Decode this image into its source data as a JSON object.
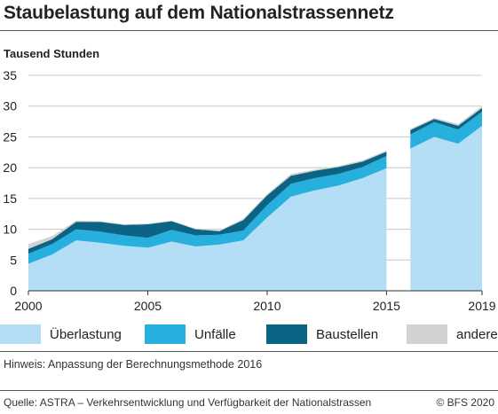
{
  "header": {
    "title": "Staubelastung auf dem Nationalstrassennetz"
  },
  "footer": {
    "note": "Hinweis: Anpassung der Berechnungsmethode 2016",
    "source": "Quelle: ASTRA – Verkehrsentwicklung und Verfügbarkeit der Nationalstrassen",
    "copyright": "© BFS 2020"
  },
  "colors": {
    "ueberlastung": "#b3def5",
    "unfaelle": "#27b0dd",
    "baustellen": "#0b6483",
    "anderes": "#d2d2d2",
    "axis": "#333333",
    "grid": "#c8c8c8"
  },
  "chart_data": {
    "type": "area",
    "stacked": true,
    "title": "Staubelastung auf dem Nationalstrassennetz",
    "ylabel": "Tausend Stunden",
    "xlabel": "",
    "ylim": [
      0,
      35
    ],
    "xlim": [
      2000,
      2019
    ],
    "yticks": [
      0,
      5,
      10,
      15,
      20,
      25,
      30,
      35
    ],
    "xtick_labels": [
      "2000",
      "2005",
      "2010",
      "2015",
      "2019"
    ],
    "grid": true,
    "legend_position": "bottom",
    "x": [
      2000,
      2001,
      2002,
      2003,
      2004,
      2005,
      2006,
      2007,
      2008,
      2009,
      2010,
      2011,
      2012,
      2013,
      2014,
      2015,
      2016,
      2017,
      2018,
      2019
    ],
    "segments": [
      [
        2000,
        2015
      ],
      [
        2016,
        2019
      ]
    ],
    "series": [
      {
        "name": "Überlastung",
        "values": [
          4.4,
          5.9,
          8.2,
          7.8,
          7.3,
          7.0,
          8.0,
          7.2,
          7.5,
          8.2,
          11.9,
          15.3,
          16.3,
          17.1,
          18.3,
          19.9,
          23.1,
          25.0,
          23.9,
          26.8
        ]
      },
      {
        "name": "Unfälle",
        "values": [
          1.6,
          1.7,
          1.8,
          1.8,
          1.7,
          1.6,
          1.9,
          1.8,
          1.6,
          1.6,
          2.0,
          2.1,
          2.0,
          1.9,
          1.8,
          2.0,
          2.3,
          2.4,
          2.3,
          2.3
        ]
      },
      {
        "name": "Baustellen",
        "values": [
          0.8,
          0.8,
          1.2,
          1.6,
          1.7,
          2.2,
          1.4,
          1.0,
          0.6,
          1.7,
          1.6,
          1.3,
          1.2,
          1.1,
          0.9,
          0.7,
          0.7,
          0.5,
          0.6,
          0.6
        ]
      },
      {
        "name": "anderes",
        "values": [
          0.8,
          0.5,
          0.2,
          0.1,
          0.1,
          0.1,
          0.1,
          0.1,
          0.1,
          0.2,
          0.2,
          0.3,
          0.2,
          0.2,
          0.2,
          0.2,
          0.2,
          0.2,
          0.3,
          0.3
        ]
      }
    ]
  }
}
